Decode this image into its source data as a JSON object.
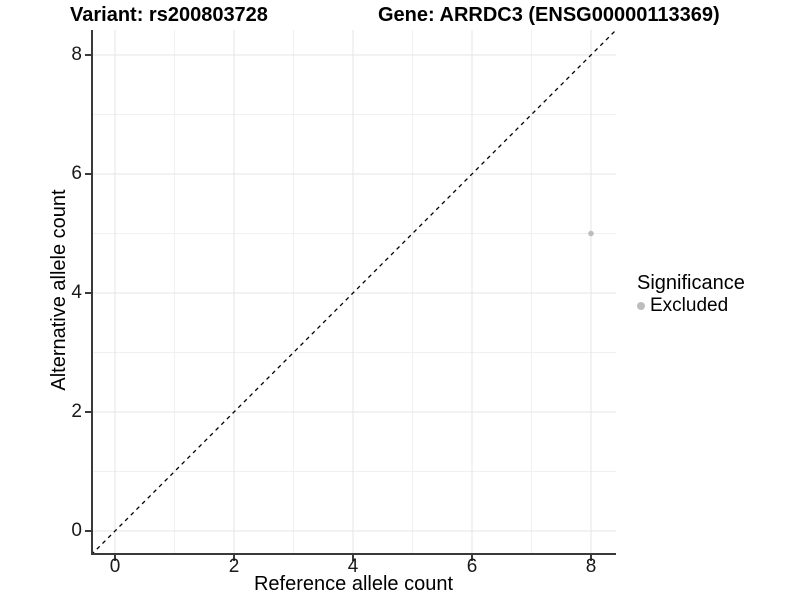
{
  "chart_data": {
    "type": "scatter",
    "title_left": "Variant: rs200803728",
    "title_right": "Gene: ARRDC3 (ENSG00000113369)",
    "xlabel": "Reference allele count",
    "ylabel": "Alternative allele count",
    "xticks": [
      0,
      2,
      4,
      6,
      8
    ],
    "yticks": [
      0,
      2,
      4,
      6,
      8
    ],
    "xlim": [
      -0.4,
      8.4
    ],
    "ylim": [
      -0.4,
      8.4
    ],
    "grid": "major and minor, light gray on white",
    "identity_line": {
      "type": "dashed",
      "from": [
        -0.4,
        -0.4
      ],
      "to": [
        8.4,
        8.4
      ],
      "color": "#000000"
    },
    "points": [
      {
        "x": 8,
        "y": 5,
        "series": "Excluded",
        "color": "#bdbdbd"
      }
    ],
    "legend": {
      "position": "right",
      "title": "Significance",
      "items": [
        {
          "label": "Excluded",
          "color": "#bdbdbd"
        }
      ]
    },
    "colors": {
      "axis_line": "#3a3a3a",
      "grid_major": "#e4e4e4",
      "grid_minor": "#f0f0f0",
      "tick_text": "#1a1a1a",
      "point": "#bdbdbd"
    }
  }
}
